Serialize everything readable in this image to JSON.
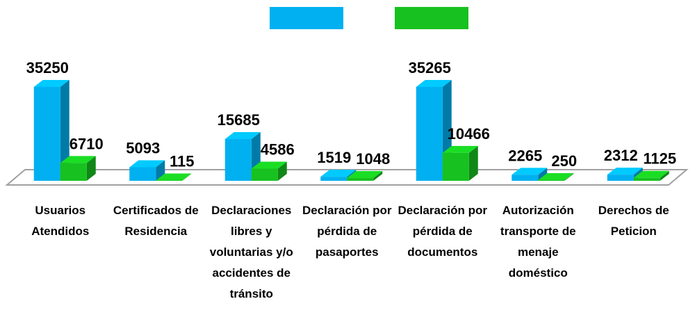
{
  "chart_data": {
    "type": "bar3d",
    "categories": [
      "Usuarios Atendidos",
      "Certificados de Residencia",
      "Declaraciones libres y voluntarias y/o accidentes de tránsito",
      "Declaración por pérdida de pasaportes",
      "Declaración por pérdida de documentos",
      "Autorización transporte de menaje doméstico",
      "Derechos de Peticion"
    ],
    "series": [
      {
        "color": "#00b0f0",
        "values": [
          35250,
          5093,
          15685,
          1519,
          35265,
          2265,
          2312
        ]
      },
      {
        "color": "#17c11f",
        "values": [
          6710,
          115,
          4586,
          1048,
          10466,
          250,
          1125
        ]
      }
    ]
  }
}
